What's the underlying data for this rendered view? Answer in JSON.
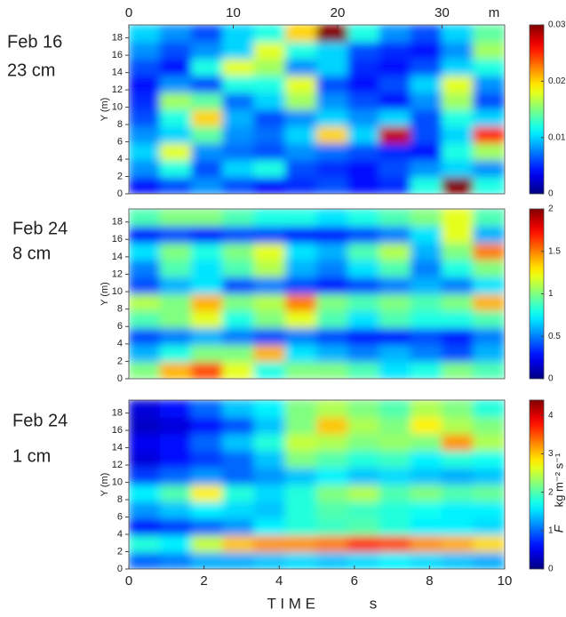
{
  "chart_data": [
    {
      "type": "heatmap",
      "label": [
        "Feb 16",
        "23 cm"
      ],
      "ylabel": "Y (m)",
      "xaxis_position": "top",
      "xlim": [
        0,
        36
      ],
      "xticks": [
        0,
        10,
        20,
        30
      ],
      "xunit": "m",
      "ylim": [
        0,
        19.5
      ],
      "yticks": [
        0,
        2,
        4,
        6,
        8,
        10,
        12,
        14,
        16,
        18
      ],
      "colormap": "jet",
      "zlim": [
        0,
        0.03
      ],
      "zticks": [
        0,
        0.01,
        0.02,
        0.03
      ],
      "z": [
        [
          0.004,
          0.006,
          0.008,
          0.006,
          0.004,
          0.005,
          0.006,
          0.004,
          0.005,
          0.012,
          0.03,
          0.012
        ],
        [
          0.008,
          0.012,
          0.006,
          0.01,
          0.012,
          0.006,
          0.005,
          0.004,
          0.006,
          0.008,
          0.01,
          0.008
        ],
        [
          0.01,
          0.018,
          0.008,
          0.007,
          0.006,
          0.008,
          0.007,
          0.006,
          0.005,
          0.004,
          0.012,
          0.016
        ],
        [
          0.008,
          0.01,
          0.014,
          0.008,
          0.007,
          0.01,
          0.02,
          0.01,
          0.028,
          0.006,
          0.01,
          0.025
        ],
        [
          0.006,
          0.012,
          0.02,
          0.009,
          0.006,
          0.008,
          0.01,
          0.008,
          0.01,
          0.006,
          0.012,
          0.01
        ],
        [
          0.005,
          0.016,
          0.014,
          0.007,
          0.01,
          0.016,
          0.008,
          0.006,
          0.004,
          0.008,
          0.016,
          0.006
        ],
        [
          0.004,
          0.008,
          0.006,
          0.012,
          0.012,
          0.018,
          0.006,
          0.004,
          0.006,
          0.01,
          0.018,
          0.008
        ],
        [
          0.006,
          0.004,
          0.012,
          0.018,
          0.016,
          0.008,
          0.01,
          0.005,
          0.004,
          0.006,
          0.01,
          0.012
        ],
        [
          0.008,
          0.006,
          0.008,
          0.01,
          0.018,
          0.012,
          0.01,
          0.006,
          0.005,
          0.004,
          0.008,
          0.016
        ],
        [
          0.01,
          0.008,
          0.006,
          0.01,
          0.012,
          0.02,
          0.03,
          0.012,
          0.008,
          0.006,
          0.01,
          0.014
        ]
      ]
    },
    {
      "type": "heatmap",
      "label": [
        "Feb 24",
        "8 cm"
      ],
      "ylabel": "Y (m)",
      "ylim": [
        0,
        19.5
      ],
      "yticks": [
        0,
        2,
        4,
        6,
        8,
        10,
        12,
        14,
        16,
        18
      ],
      "colormap": "jet",
      "zlim": [
        0,
        2
      ],
      "zticks": [
        0,
        0.5,
        1,
        1.5,
        2
      ],
      "z": [
        [
          1.0,
          1.4,
          1.6,
          1.2,
          0.8,
          1.0,
          1.0,
          0.9,
          0.7,
          0.8,
          1.0,
          0.9
        ],
        [
          0.6,
          0.8,
          1.0,
          1.0,
          1.4,
          0.7,
          0.6,
          0.5,
          0.6,
          0.5,
          0.4,
          0.6
        ],
        [
          0.4,
          0.5,
          0.6,
          0.5,
          0.4,
          0.5,
          0.4,
          0.3,
          0.3,
          0.4,
          0.3,
          0.5
        ],
        [
          0.9,
          1.0,
          1.2,
          0.8,
          1.0,
          1.2,
          0.9,
          0.7,
          0.9,
          0.8,
          0.8,
          0.9
        ],
        [
          1.1,
          1.0,
          1.4,
          1.0,
          1.1,
          1.5,
          1.0,
          0.9,
          1.0,
          0.9,
          1.0,
          1.4
        ],
        [
          0.4,
          0.6,
          0.7,
          0.4,
          0.5,
          0.4,
          0.3,
          0.4,
          0.5,
          0.6,
          0.5,
          0.7
        ],
        [
          0.5,
          0.9,
          0.7,
          0.9,
          1.1,
          0.6,
          0.5,
          0.7,
          0.9,
          0.5,
          0.8,
          1.0
        ],
        [
          0.7,
          1.0,
          0.8,
          1.0,
          1.2,
          0.7,
          0.6,
          0.9,
          1.1,
          0.6,
          1.0,
          1.5
        ],
        [
          0.3,
          0.4,
          0.3,
          0.4,
          0.4,
          0.3,
          0.3,
          0.4,
          0.5,
          0.7,
          1.2,
          0.6
        ],
        [
          0.9,
          1.0,
          1.0,
          0.9,
          0.8,
          0.8,
          0.7,
          0.8,
          0.9,
          1.0,
          1.2,
          0.9
        ]
      ]
    },
    {
      "type": "heatmap",
      "label": [
        "Feb 24",
        "1 cm"
      ],
      "ylabel": "Y (m)",
      "xaxis_position": "bottom",
      "xlim": [
        0,
        10
      ],
      "xticks": [
        0,
        2,
        4,
        6,
        8,
        10
      ],
      "xlabel": "T I M E",
      "xunit": "s",
      "ylim": [
        0,
        19.5
      ],
      "yticks": [
        0,
        2,
        4,
        6,
        8,
        10,
        12,
        14,
        16,
        18
      ],
      "colormap": "jet",
      "zlim": [
        0,
        4.4
      ],
      "zticks": [
        0,
        1,
        2,
        3,
        4
      ],
      "colorbar_label": "F",
      "colorbar_unit": "kg m⁻² s⁻¹",
      "z": [
        [
          1.0,
          1.1,
          1.3,
          1.3,
          1.4,
          1.5,
          1.4,
          1.5,
          1.6,
          1.5,
          1.4,
          1.3
        ],
        [
          1.8,
          1.6,
          2.5,
          3.0,
          3.2,
          3.2,
          3.3,
          3.6,
          3.5,
          3.2,
          3.1,
          2.9
        ],
        [
          0.6,
          0.8,
          1.0,
          1.2,
          1.6,
          1.8,
          1.9,
          2.0,
          1.8,
          1.6,
          1.6,
          1.5
        ],
        [
          1.2,
          1.4,
          1.6,
          1.5,
          1.4,
          1.8,
          2.0,
          1.9,
          1.8,
          1.7,
          1.6,
          1.6
        ],
        [
          1.6,
          2.0,
          2.8,
          1.8,
          1.5,
          1.8,
          2.2,
          2.4,
          2.0,
          2.2,
          2.0,
          2.1
        ],
        [
          0.8,
          1.0,
          1.2,
          1.0,
          1.2,
          1.4,
          1.6,
          1.4,
          1.5,
          1.4,
          1.3,
          1.4
        ],
        [
          0.4,
          0.6,
          0.8,
          1.0,
          1.4,
          2.2,
          2.0,
          1.8,
          1.9,
          1.6,
          1.8,
          1.7
        ],
        [
          0.5,
          0.6,
          1.0,
          1.4,
          1.8,
          2.5,
          2.4,
          2.2,
          2.3,
          2.2,
          3.2,
          2.4
        ],
        [
          0.3,
          0.4,
          0.6,
          0.9,
          1.4,
          2.2,
          3.0,
          2.4,
          2.2,
          2.8,
          2.4,
          2.2
        ],
        [
          0.4,
          0.6,
          1.0,
          1.4,
          1.6,
          2.2,
          2.4,
          2.2,
          2.0,
          2.4,
          2.2,
          1.8
        ]
      ]
    }
  ]
}
